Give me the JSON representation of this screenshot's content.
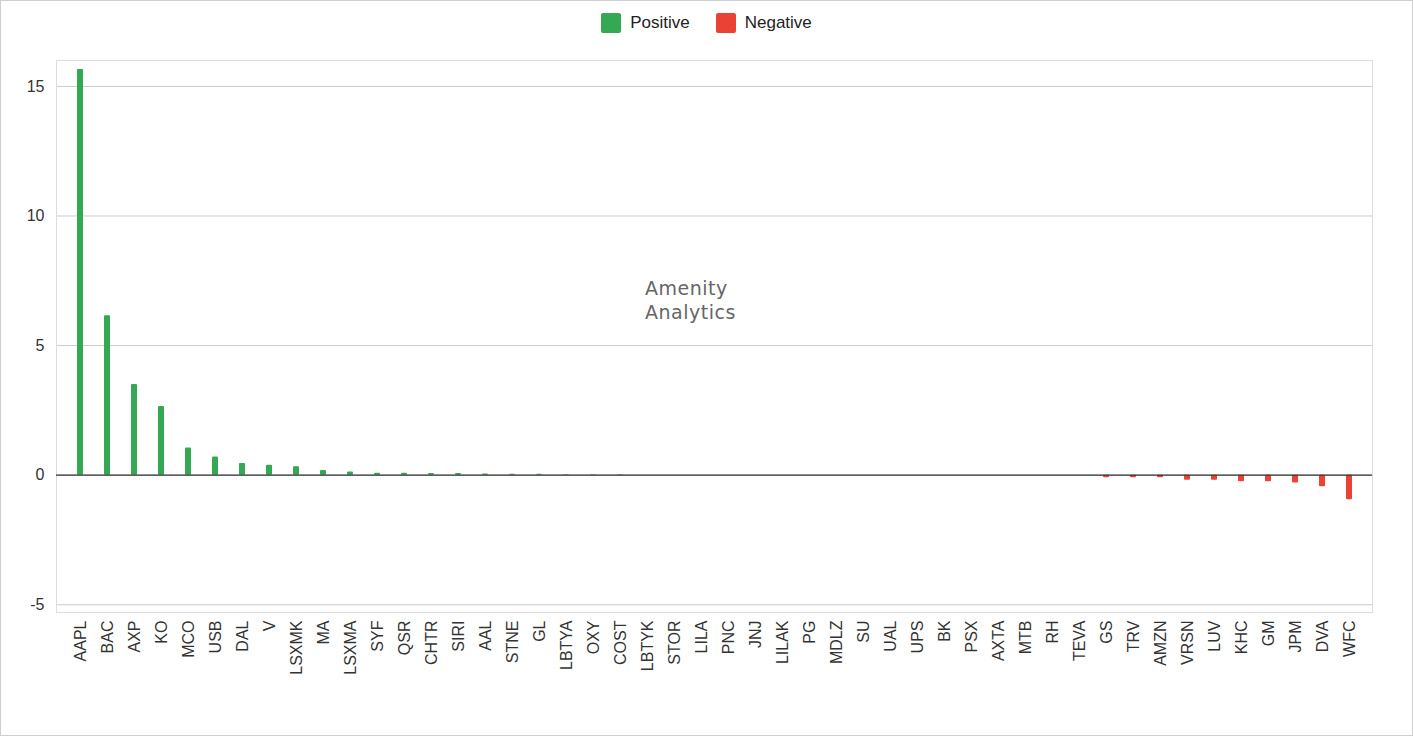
{
  "chart_data": {
    "type": "bar",
    "categories": [
      "AAPL",
      "BAC",
      "AXP",
      "KO",
      "MCO",
      "USB",
      "DAL",
      "V",
      "LSXMK",
      "MA",
      "LSXMA",
      "SYF",
      "QSR",
      "CHTR",
      "SIRI",
      "AAL",
      "STNE",
      "GL",
      "LBTYA",
      "OXY",
      "COST",
      "LBTYK",
      "STOR",
      "LILA",
      "PNC",
      "JNJ",
      "LILAK",
      "PG",
      "MDLZ",
      "SU",
      "UAL",
      "UPS",
      "BK",
      "PSX",
      "AXTA",
      "MTB",
      "RH",
      "TEVA",
      "GS",
      "TRV",
      "AMZN",
      "VRSN",
      "LUV",
      "KHC",
      "GM",
      "JPM",
      "DVA",
      "WFC"
    ],
    "series": [
      {
        "name": "Positive",
        "color": "#34a853",
        "values": [
          15.65,
          6.15,
          3.5,
          2.65,
          1.05,
          0.7,
          0.45,
          0.38,
          0.32,
          0.18,
          0.12,
          0.07,
          0.07,
          0.06,
          0.06,
          0.04,
          0.03,
          0.03,
          0.02,
          0.02,
          0.02,
          0,
          0,
          0,
          0,
          0,
          0,
          0,
          0,
          0,
          0,
          0,
          0,
          0,
          0,
          0,
          0,
          0,
          null,
          null,
          null,
          null,
          null,
          null,
          null,
          null,
          null,
          null
        ]
      },
      {
        "name": "Negative",
        "color": "#ea4335",
        "values": [
          null,
          null,
          null,
          null,
          null,
          null,
          null,
          null,
          null,
          null,
          null,
          null,
          null,
          null,
          null,
          null,
          null,
          null,
          null,
          null,
          null,
          null,
          null,
          null,
          null,
          null,
          null,
          null,
          null,
          null,
          null,
          null,
          null,
          null,
          null,
          null,
          null,
          null,
          -0.1,
          -0.1,
          -0.1,
          -0.2,
          -0.2,
          -0.25,
          -0.25,
          -0.3,
          -0.45,
          -0.95
        ]
      }
    ],
    "annotations": [
      "Amenity",
      "Analytics"
    ],
    "ylim": [
      -5.3,
      16
    ],
    "yticks": [
      -5,
      0,
      5,
      10,
      15
    ],
    "grid": true,
    "legend": "top"
  }
}
